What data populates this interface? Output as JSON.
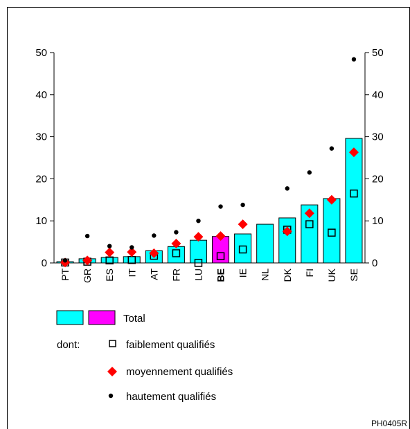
{
  "chart_data": {
    "type": "bar",
    "categories": [
      "PT",
      "GR",
      "ES",
      "IT",
      "AT",
      "FR",
      "LU",
      "BE",
      "IE",
      "NL",
      "DK",
      "FI",
      "UK",
      "SE"
    ],
    "highlight_category": "BE",
    "ylim": [
      0,
      50
    ],
    "yticks": [
      0,
      10,
      20,
      30,
      40,
      50
    ],
    "grid": false,
    "series": [
      {
        "name": "Total",
        "kind": "bar",
        "values": [
          0.3,
          1.0,
          1.3,
          1.5,
          2.9,
          3.9,
          5.4,
          6.3,
          6.9,
          9.2,
          10.7,
          13.8,
          15.3,
          29.6
        ]
      },
      {
        "name": "faiblement qualifiés",
        "kind": "open-square",
        "values": [
          0.1,
          0.3,
          0.6,
          0.7,
          1.7,
          2.3,
          0.0,
          1.6,
          3.2,
          null,
          7.9,
          9.2,
          7.2,
          16.5
        ]
      },
      {
        "name": "moyennement qualifiés",
        "kind": "red-diamond",
        "values": [
          0.1,
          0.6,
          2.5,
          2.6,
          2.3,
          4.6,
          6.2,
          6.4,
          9.2,
          null,
          7.5,
          11.8,
          15.0,
          26.3
        ]
      },
      {
        "name": "hautement qualifiés",
        "kind": "black-dot",
        "values": [
          0.6,
          6.4,
          4.0,
          3.7,
          6.5,
          7.3,
          10.0,
          13.4,
          13.8,
          null,
          17.7,
          21.5,
          27.2,
          48.4
        ]
      }
    ],
    "legend": {
      "placement": "bottom",
      "total_label": "Total",
      "prefix": "dont:",
      "low_label": "faiblement qualifiés",
      "mid_label": "moyennement qualifiés",
      "high_label": "hautement qualifiés"
    },
    "colors": {
      "bar": "#00ffff",
      "highlight_bar": "#ff00ff",
      "diamond": "#ff0000",
      "dot": "#000000"
    }
  },
  "footer_code": "PH0405R"
}
